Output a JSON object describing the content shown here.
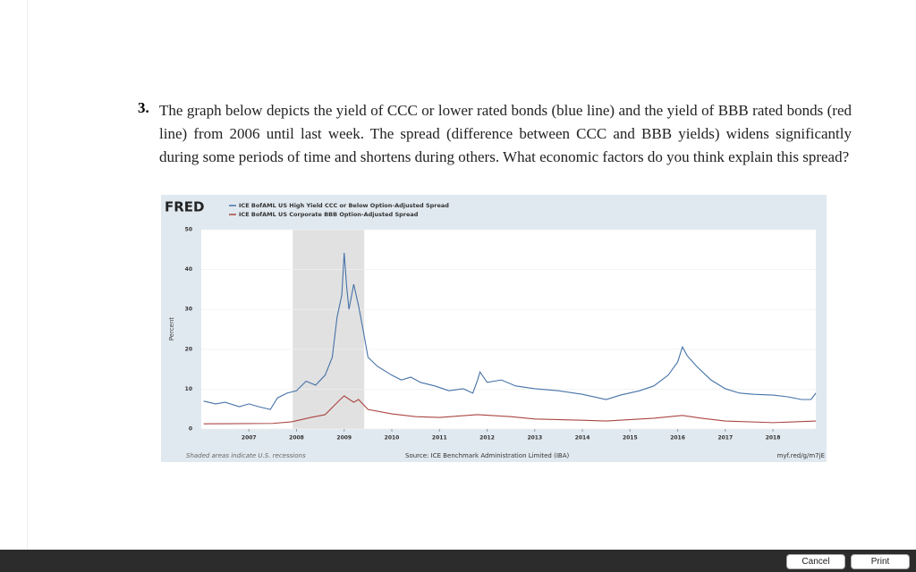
{
  "question": {
    "number": "3.",
    "text": "The graph below depicts the yield of CCC or lower rated bonds (blue line) and the yield of BBB rated bonds (red line) from 2006 until last week. The spread (difference between CCC and BBB yields) widens significantly during some periods of time and shortens during others. What economic factors do you think explain this spread?"
  },
  "chart_data": {
    "type": "line",
    "logo": "FRED",
    "ylabel": "Percent",
    "note": "Shaded areas indicate U.S. recessions",
    "source": "Source: ICE Benchmark Administration Limited (IBA)",
    "link": "myf.red/g/m7jE",
    "xlim": [
      2006,
      2018.9
    ],
    "xticks": [
      2007,
      2008,
      2009,
      2010,
      2011,
      2012,
      2013,
      2014,
      2015,
      2016,
      2017,
      2018
    ],
    "ylim": [
      0,
      50
    ],
    "yticks": [
      0,
      10,
      20,
      30,
      40,
      50
    ],
    "grid": true,
    "recessions": [
      [
        2007.92,
        2009.42
      ]
    ],
    "series": [
      {
        "name": "ICE BofAML US High Yield CCC or Below Option-Adjusted Spread",
        "color": "#4572a7",
        "x": [
          2006.05,
          2006.3,
          2006.5,
          2006.8,
          2007.0,
          2007.2,
          2007.45,
          2007.6,
          2007.8,
          2008.0,
          2008.2,
          2008.4,
          2008.6,
          2008.75,
          2008.85,
          2008.95,
          2009.0,
          2009.05,
          2009.1,
          2009.2,
          2009.3,
          2009.4,
          2009.5,
          2009.7,
          2010.0,
          2010.2,
          2010.4,
          2010.6,
          2010.9,
          2011.2,
          2011.5,
          2011.7,
          2011.8,
          2011.85,
          2012.0,
          2012.3,
          2012.6,
          2013.0,
          2013.5,
          2014.0,
          2014.5,
          2014.8,
          2015.2,
          2015.5,
          2015.8,
          2016.0,
          2016.1,
          2016.2,
          2016.4,
          2016.7,
          2017.0,
          2017.3,
          2017.6,
          2018.0,
          2018.3,
          2018.6,
          2018.8,
          2018.9
        ],
        "values": [
          7.0,
          6.3,
          6.7,
          5.6,
          6.3,
          5.6,
          4.9,
          7.8,
          9.0,
          9.6,
          12,
          11,
          13.5,
          18,
          28,
          33.6,
          44.2,
          36,
          30,
          36.3,
          31,
          24.7,
          18,
          15.7,
          13.5,
          12.3,
          13,
          11.7,
          10.8,
          9.6,
          10.1,
          9,
          12.3,
          14.3,
          11.7,
          12.3,
          10.8,
          10.1,
          9.6,
          8.7,
          7.4,
          8.5,
          9.6,
          10.8,
          13.5,
          16.8,
          20.6,
          18.4,
          15.7,
          12.3,
          10.1,
          9,
          8.7,
          8.5,
          8.1,
          7.4,
          7.4,
          9.0
        ]
      },
      {
        "name": "ICE BofAML US Corporate BBB Option-Adjusted Spread",
        "color": "#aa4643",
        "x": [
          2006.05,
          2007.5,
          2007.9,
          2008.3,
          2008.6,
          2008.9,
          2009.0,
          2009.2,
          2009.3,
          2009.5,
          2010.0,
          2010.5,
          2011.0,
          2011.8,
          2012.5,
          2013.0,
          2014.0,
          2014.5,
          2015.5,
          2016.1,
          2016.5,
          2017.0,
          2018.0,
          2018.9
        ],
        "values": [
          1.3,
          1.4,
          1.8,
          2.9,
          3.6,
          7.2,
          8.3,
          6.7,
          7.4,
          4.9,
          3.8,
          3.1,
          2.9,
          3.6,
          3.1,
          2.5,
          2.2,
          2.0,
          2.7,
          3.4,
          2.7,
          2.0,
          1.6,
          2.0
        ]
      }
    ]
  },
  "buttons": {
    "cancel": "Cancel",
    "print": "Print"
  }
}
